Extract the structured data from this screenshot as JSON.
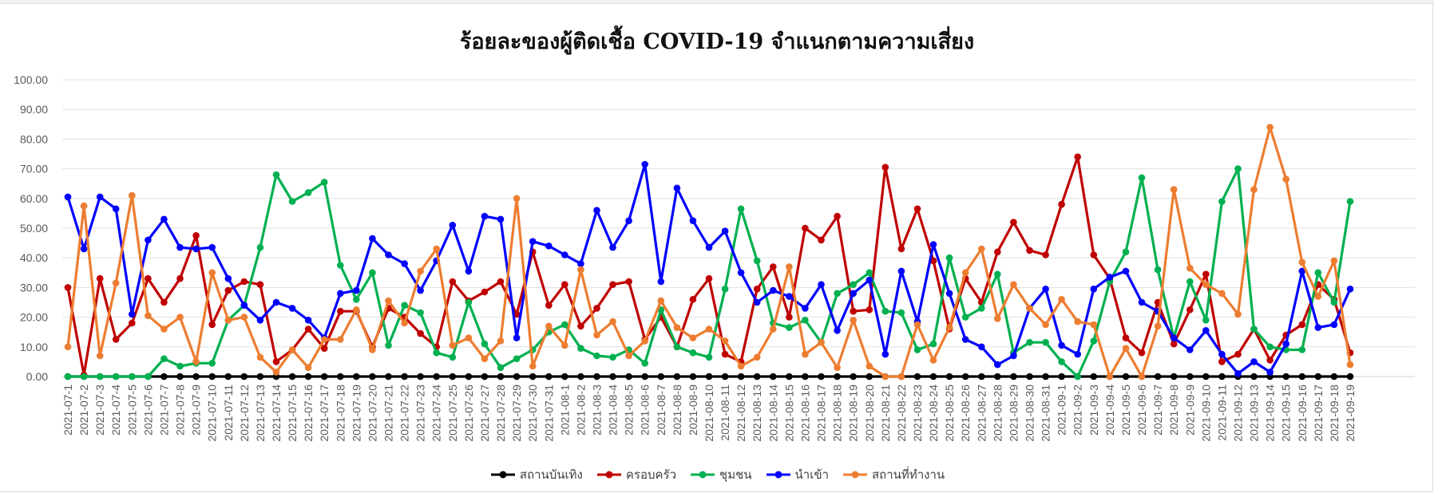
{
  "chart_data": {
    "type": "line",
    "title": "ร้อยละของผู้ติดเชื้อ COVID-19 จำแนกตามความเสี่ยง",
    "xlabel": "",
    "ylabel": "",
    "ylim": [
      0,
      100
    ],
    "y_ticks": [
      "0.00",
      "10.00",
      "20.00",
      "30.00",
      "40.00",
      "50.00",
      "60.00",
      "70.00",
      "80.00",
      "90.00",
      "100.00"
    ],
    "grid": "horizontal",
    "legend_position": "bottom",
    "categories": [
      "2021-07-1",
      "2021-07-2",
      "2021-07-3",
      "2021-07-4",
      "2021-07-5",
      "2021-07-6",
      "2021-07-7",
      "2021-07-8",
      "2021-07-9",
      "2021-07-10",
      "2021-07-11",
      "2021-07-12",
      "2021-07-13",
      "2021-07-14",
      "2021-07-15",
      "2021-07-16",
      "2021-07-17",
      "2021-07-18",
      "2021-07-19",
      "2021-07-20",
      "2021-07-21",
      "2021-07-22",
      "2021-07-23",
      "2021-07-24",
      "2021-07-25",
      "2021-07-26",
      "2021-07-27",
      "2021-07-28",
      "2021-07-29",
      "2021-07-30",
      "2021-07-31",
      "2021-08-1",
      "2021-08-2",
      "2021-08-3",
      "2021-08-4",
      "2021-08-5",
      "2021-08-6",
      "2021-08-7",
      "2021-08-8",
      "2021-08-9",
      "2021-08-10",
      "2021-08-11",
      "2021-08-12",
      "2021-08-13",
      "2021-08-14",
      "2021-08-15",
      "2021-08-16",
      "2021-08-17",
      "2021-08-18",
      "2021-08-19",
      "2021-08-20",
      "2021-08-21",
      "2021-08-22",
      "2021-08-23",
      "2021-08-24",
      "2021-08-25",
      "2021-08-26",
      "2021-08-27",
      "2021-08-28",
      "2021-08-29",
      "2021-08-30",
      "2021-08-31",
      "2021-09-1",
      "2021-09-2",
      "2021-09-3",
      "2021-09-4",
      "2021-09-5",
      "2021-09-6",
      "2021-09-7",
      "2021-09-8",
      "2021-09-9",
      "2021-09-10",
      "2021-09-11",
      "2021-09-12",
      "2021-09-13",
      "2021-09-14",
      "2021-09-15",
      "2021-09-16",
      "2021-09-17",
      "2021-09-18",
      "2021-09-19"
    ],
    "series": [
      {
        "name": "สถานบันเทิง",
        "color": "#000000",
        "values": [
          0,
          0,
          0,
          0,
          0,
          0,
          0,
          0,
          0,
          0,
          0,
          0,
          0,
          0,
          0,
          0,
          0,
          0,
          0,
          0,
          0,
          0,
          0,
          0,
          0,
          0,
          0,
          0,
          0,
          0,
          0,
          0,
          0,
          0,
          0,
          0,
          0,
          0,
          0,
          0,
          0,
          0,
          0,
          0,
          0,
          0,
          0,
          0,
          0,
          0,
          0,
          0,
          0,
          0,
          0,
          0,
          0,
          0,
          0,
          0,
          0,
          0,
          0,
          0,
          0,
          0,
          0,
          0,
          0,
          0,
          0,
          0,
          0,
          0,
          0,
          0,
          0,
          0,
          0,
          0,
          0
        ]
      },
      {
        "name": "ครอบครัว",
        "color": "#c00000",
        "values": [
          30,
          0.5,
          33,
          12.5,
          18,
          33,
          25,
          33,
          47.5,
          17.5,
          29,
          32,
          31,
          5,
          9,
          16,
          9.5,
          22,
          22,
          10,
          23,
          20,
          14.5,
          10,
          32,
          25.5,
          28.5,
          32,
          21,
          42,
          24,
          31,
          17,
          23,
          31,
          32,
          12.5,
          20,
          10,
          26,
          33,
          7.5,
          5,
          29.5,
          37,
          20,
          50,
          46,
          54,
          22,
          22.5,
          70.5,
          43,
          56.5,
          39,
          16,
          33,
          25,
          42,
          52,
          42.5,
          41,
          58,
          74,
          41,
          33,
          13,
          8,
          25,
          11,
          22.5,
          34.5,
          5,
          7.5,
          16,
          5.5,
          14,
          17.5,
          31,
          26,
          8
        ]
      },
      {
        "name": "ชุมชน",
        "color": "#00b050",
        "values": [
          0,
          0,
          0,
          0,
          0,
          0,
          6,
          3.5,
          4.5,
          4.5,
          19,
          24,
          43.5,
          68,
          59,
          62,
          65.5,
          37.5,
          26,
          35,
          10.5,
          24,
          21.5,
          8,
          6.5,
          25,
          11,
          3,
          6,
          9,
          15,
          17.5,
          9.5,
          7,
          6.5,
          9,
          4.5,
          22.5,
          10,
          8,
          6.5,
          29.5,
          56.5,
          39,
          18,
          16.5,
          19,
          11.5,
          28,
          31,
          35,
          22,
          21.5,
          9,
          11,
          40,
          20,
          23,
          34.5,
          8,
          11.5,
          11.5,
          5,
          0,
          12,
          32,
          42,
          67,
          36,
          13,
          32,
          19,
          59,
          70,
          16,
          10,
          9,
          9,
          35,
          25,
          59
        ]
      },
      {
        "name": "นำเข้า",
        "color": "#0000ff",
        "values": [
          60.5,
          43,
          60.5,
          56.5,
          21,
          46,
          53,
          43.5,
          43,
          43.5,
          33,
          24,
          19,
          25,
          23,
          19,
          13,
          28,
          29,
          46.5,
          41,
          38,
          29,
          39,
          51,
          35.5,
          54,
          53,
          13,
          45.5,
          44,
          41,
          38,
          56,
          43.5,
          52.5,
          71.5,
          32,
          63.5,
          52.5,
          43.5,
          49,
          35,
          25,
          29,
          27,
          23,
          31,
          15.5,
          28,
          32.5,
          7.5,
          35.5,
          18.5,
          44.5,
          28,
          12.5,
          10,
          4,
          7,
          23,
          29.5,
          10.5,
          7.5,
          29.5,
          33.5,
          35.5,
          25,
          22,
          13,
          9,
          15.5,
          7.5,
          1,
          5,
          1.5,
          11,
          35.5,
          16.5,
          17.5,
          29.5
        ]
      },
      {
        "name": "สถานที่ทำงาน",
        "color": "#ed7d31",
        "values": [
          10,
          57.5,
          7,
          31.5,
          61,
          20.5,
          16,
          20,
          5,
          35,
          19,
          20,
          6.5,
          1.5,
          9,
          3,
          12.5,
          12.5,
          22.5,
          9,
          25.5,
          18,
          35.5,
          43,
          10.5,
          13,
          6,
          12,
          60,
          3.5,
          17,
          10.5,
          36,
          14,
          18.5,
          7,
          12,
          25.5,
          16.5,
          13,
          16,
          12,
          3.5,
          6.5,
          16,
          37,
          7.5,
          11.5,
          3,
          19,
          3.5,
          0,
          0,
          17.5,
          5.5,
          16.5,
          35,
          43,
          19.5,
          31,
          23,
          17.5,
          26,
          18.5,
          17.5,
          0,
          9.5,
          0,
          17,
          63,
          36.5,
          31,
          28,
          21,
          63,
          84,
          66.5,
          38.5,
          27,
          39,
          4
        ]
      }
    ]
  }
}
